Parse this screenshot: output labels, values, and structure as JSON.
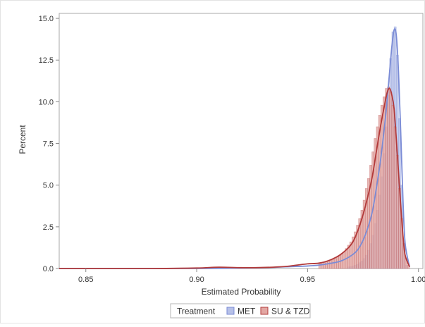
{
  "chart_data": {
    "type": "bar",
    "title": "",
    "xlabel": "Estimated Probability",
    "ylabel": "Percent",
    "xlim": [
      0.838,
      1.002
    ],
    "ylim": [
      0,
      15.3
    ],
    "x_ticks": [
      0.85,
      0.9,
      0.95,
      1.0
    ],
    "x_tick_labels": [
      "0.85",
      "0.90",
      "0.95",
      "1.00"
    ],
    "y_ticks": [
      0.0,
      2.5,
      5.0,
      7.5,
      10.0,
      12.5,
      15.0
    ],
    "y_tick_labels": [
      "0.0",
      "2.5",
      "5.0",
      "7.5",
      "10.0",
      "12.5",
      "15.0"
    ],
    "grid": false,
    "legend": {
      "title": "Treatment",
      "placement": "bottom",
      "entries": [
        "MET",
        "SU & TZD"
      ]
    },
    "bin_width": 0.001,
    "series": [
      {
        "name": "MET",
        "color": "#7b8cd6",
        "fill": "#b7c1e8",
        "histogram": {
          "x": [
            0.968,
            0.969,
            0.97,
            0.971,
            0.972,
            0.973,
            0.974,
            0.975,
            0.976,
            0.977,
            0.978,
            0.979,
            0.98,
            0.981,
            0.982,
            0.983,
            0.984,
            0.985,
            0.986,
            0.987,
            0.988,
            0.989,
            0.99,
            0.991,
            0.992,
            0.993,
            0.994
          ],
          "values": [
            0.1,
            0.12,
            0.15,
            0.2,
            0.25,
            0.35,
            0.45,
            0.6,
            0.8,
            1.1,
            1.5,
            2.0,
            2.7,
            3.5,
            4.4,
            5.5,
            6.9,
            8.5,
            10.4,
            12.6,
            14.2,
            14.5,
            12.8,
            9.0,
            5.0,
            1.5,
            0.2
          ]
        },
        "density": {
          "x": [
            0.838,
            0.9,
            0.93,
            0.94,
            0.95,
            0.955,
            0.96,
            0.965,
            0.97,
            0.973,
            0.976,
            0.979,
            0.981,
            0.983,
            0.985,
            0.986,
            0.987,
            0.988,
            0.989,
            0.99,
            0.991,
            0.992,
            0.993,
            0.994,
            0.996
          ],
          "values": [
            0.0,
            0.0,
            0.05,
            0.1,
            0.15,
            0.2,
            0.3,
            0.45,
            0.8,
            1.2,
            2.0,
            3.3,
            4.8,
            6.6,
            8.9,
            10.3,
            11.8,
            13.3,
            14.3,
            14.0,
            11.8,
            8.2,
            4.2,
            1.5,
            0.1
          ]
        }
      },
      {
        "name": "SU & TZD",
        "color": "#b23a3a",
        "fill": "#e2a7a3",
        "histogram": {
          "x": [
            0.955,
            0.956,
            0.957,
            0.958,
            0.959,
            0.96,
            0.961,
            0.962,
            0.963,
            0.964,
            0.965,
            0.966,
            0.967,
            0.968,
            0.969,
            0.97,
            0.971,
            0.972,
            0.973,
            0.974,
            0.975,
            0.976,
            0.977,
            0.978,
            0.979,
            0.98,
            0.981,
            0.982,
            0.983,
            0.984,
            0.985,
            0.986,
            0.987,
            0.988,
            0.989,
            0.99,
            0.991,
            0.992,
            0.993,
            0.994,
            0.995
          ],
          "values": [
            0.3,
            0.3,
            0.35,
            0.4,
            0.45,
            0.5,
            0.55,
            0.6,
            0.7,
            0.8,
            0.9,
            1.0,
            1.2,
            1.4,
            1.6,
            1.9,
            2.2,
            2.6,
            3.0,
            3.5,
            4.1,
            4.8,
            5.4,
            6.2,
            7.0,
            7.8,
            8.5,
            9.2,
            9.8,
            10.3,
            10.8,
            10.9,
            10.6,
            9.8,
            8.5,
            6.8,
            4.8,
            3.0,
            1.5,
            0.6,
            0.2
          ]
        },
        "density": {
          "x": [
            0.838,
            0.88,
            0.9,
            0.91,
            0.92,
            0.93,
            0.94,
            0.945,
            0.95,
            0.955,
            0.96,
            0.965,
            0.97,
            0.973,
            0.976,
            0.979,
            0.981,
            0.983,
            0.985,
            0.986,
            0.987,
            0.988,
            0.989,
            0.99,
            0.991,
            0.992,
            0.993,
            0.994,
            0.996
          ],
          "values": [
            0.0,
            0.0,
            0.03,
            0.08,
            0.05,
            0.06,
            0.12,
            0.2,
            0.28,
            0.32,
            0.5,
            0.85,
            1.5,
            2.4,
            3.7,
            5.4,
            7.0,
            8.6,
            10.0,
            10.6,
            10.8,
            10.4,
            9.6,
            7.8,
            5.8,
            3.8,
            2.0,
            0.8,
            0.1
          ]
        }
      }
    ]
  }
}
